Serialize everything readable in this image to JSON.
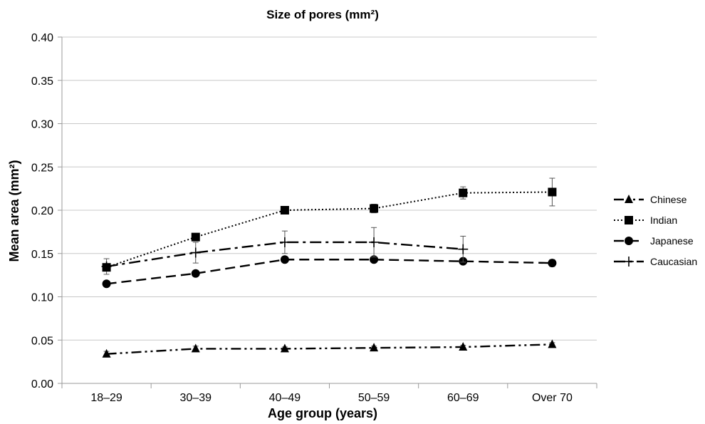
{
  "chart_data": {
    "type": "line",
    "title": "Size of pores (mm²)",
    "xlabel": "Age group (years)",
    "ylabel": "Mean area (mm²)",
    "categories": [
      "18–29",
      "30–39",
      "40–49",
      "50–59",
      "60–69",
      "Over 70"
    ],
    "ylim": [
      0,
      0.4
    ],
    "yticks": [
      "0.00",
      "0.05",
      "0.10",
      "0.15",
      "0.20",
      "0.25",
      "0.30",
      "0.35",
      "0.40"
    ],
    "grid": "horizontal",
    "legend_position": "right",
    "series": [
      {
        "name": "Chinese",
        "marker": "triangle",
        "dash": "dash-dot-dot",
        "values": [
          0.034,
          0.04,
          0.04,
          0.041,
          0.042,
          0.045
        ],
        "errors": [
          0.003,
          0.003,
          0.002,
          0.002,
          0.002,
          0.002
        ]
      },
      {
        "name": "Indian",
        "marker": "square",
        "dash": "dotted",
        "values": [
          0.134,
          0.169,
          0.2,
          0.202,
          0.22,
          0.221
        ],
        "errors": [
          0.003,
          0.003,
          0.004,
          0.005,
          0.007,
          0.016
        ]
      },
      {
        "name": "Japanese",
        "marker": "circle",
        "dash": "dashed",
        "values": [
          0.115,
          0.127,
          0.143,
          0.143,
          0.141,
          0.139
        ],
        "errors": [
          0.002,
          0.002,
          0.003,
          0.003,
          0.003,
          0.004
        ]
      },
      {
        "name": "Caucasian",
        "marker": "plus",
        "dash": "dash-dot",
        "values": [
          0.135,
          0.151,
          0.163,
          0.163,
          0.155,
          null
        ],
        "errors": [
          0.009,
          0.012,
          0.013,
          0.017,
          0.015,
          null
        ]
      }
    ],
    "color": "#000000"
  }
}
